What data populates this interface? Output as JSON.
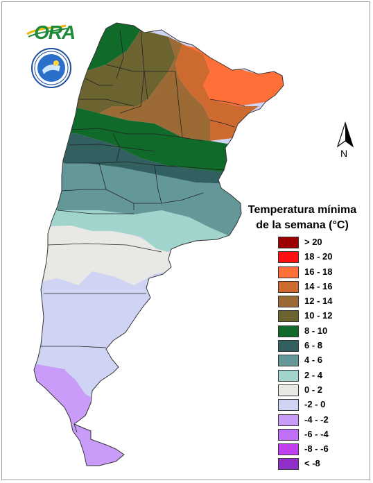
{
  "legend": {
    "title_line1": "Temperatura mínima",
    "title_line2": "de la semana (°C)",
    "classes": [
      {
        "label": "> 20",
        "color": "#9a0000"
      },
      {
        "label": "18 - 20",
        "color": "#ff1010"
      },
      {
        "label": "16 - 18",
        "color": "#ff7038"
      },
      {
        "label": "14 - 16",
        "color": "#cc6a30"
      },
      {
        "label": "12 - 14",
        "color": "#9c6b35"
      },
      {
        "label": "10 - 12",
        "color": "#6b6430"
      },
      {
        "label": "8 - 10",
        "color": "#106b2a"
      },
      {
        "label": "6 - 8",
        "color": "#325f5f"
      },
      {
        "label": "4 - 6",
        "color": "#649898"
      },
      {
        "label": "2 - 4",
        "color": "#a0d4cc"
      },
      {
        "label": "0 - 2",
        "color": "#e8e8e4"
      },
      {
        "label": "-2 - 0",
        "color": "#d0d4f4"
      },
      {
        "label": "-4 - -2",
        "color": "#c89cf8"
      },
      {
        "label": "-6 - -4",
        "color": "#c070f8"
      },
      {
        "label": "-8 - -6",
        "color": "#c040f0"
      },
      {
        "label": "< -8",
        "color": "#9030c8"
      }
    ]
  },
  "compass": {
    "label": "N"
  },
  "logos": {
    "ora_text": "ORA"
  }
}
